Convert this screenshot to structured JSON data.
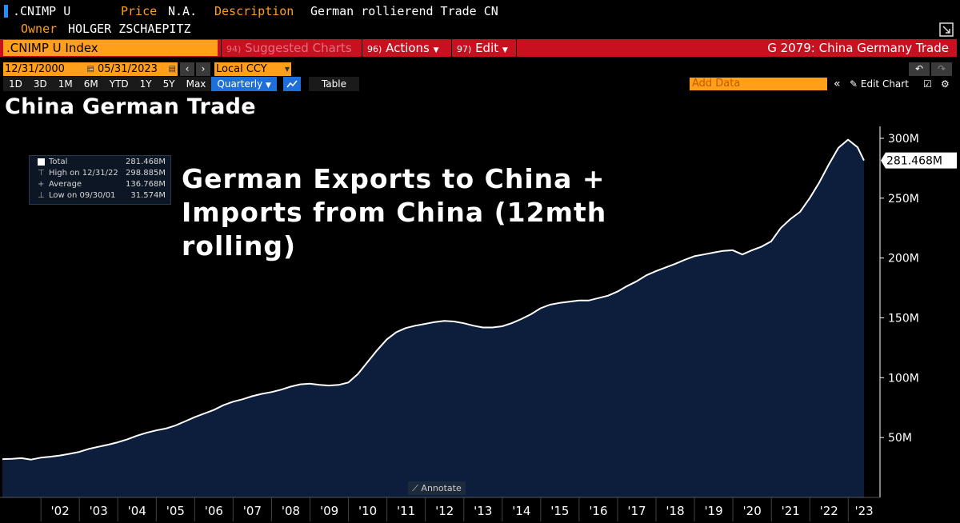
{
  "header": {
    "ticker": ".CNIMP U",
    "price_label": "Price",
    "price_value": "N.A.",
    "description_label": "Description",
    "description_value": "German rollierend Trade CN",
    "owner_label": "Owner",
    "owner_value": "HOLGER ZSCHAEPITZ"
  },
  "command_bar": {
    "security": ".CNIMP U Index",
    "suggested_num": "94)",
    "suggested_label": "Suggested Charts",
    "actions_num": "96)",
    "actions_label": "Actions",
    "edit_num": "97)",
    "edit_label": "Edit",
    "chart_id": "G 2079: China Germany Trade"
  },
  "date_range": {
    "start": "12/31/2000",
    "end": "05/31/2023",
    "currency": "Local CCY"
  },
  "periods": [
    "1D",
    "3D",
    "1M",
    "6M",
    "YTD",
    "1Y",
    "5Y",
    "Max"
  ],
  "frequency": "Quarterly",
  "table_label": "Table",
  "add_data_placeholder": "Add Data",
  "edit_chart_label": "Edit Chart",
  "annotate_label": "Annotate",
  "chart_data": {
    "type": "area",
    "title": "China German Trade",
    "annotation": "German Exports to China + Imports from China (12mth rolling)",
    "legend": {
      "total_label": "Total",
      "total_value": "281.468M",
      "high_label": "High on 12/31/22",
      "high_value": "298.885M",
      "average_label": "Average",
      "average_value": "136.768M",
      "low_label": "Low on 09/30/01",
      "low_value": "31.574M"
    },
    "last_value_label": "281.468M",
    "ylim": [
      0,
      310
    ],
    "y_ticks": [
      50,
      100,
      150,
      200,
      250,
      300
    ],
    "y_tick_labels": [
      "50M",
      "100M",
      "150M",
      "200M",
      "250M",
      "300M"
    ],
    "x_tick_labels": [
      "'02",
      "'03",
      "'04",
      "'05",
      "'06",
      "'07",
      "'08",
      "'09",
      "'10",
      "'11",
      "'12",
      "'13",
      "'14",
      "'15",
      "'16",
      "'17",
      "'18",
      "'19",
      "'20",
      "'21",
      "'22",
      "'23"
    ],
    "x_tick_years": [
      2002,
      2003,
      2004,
      2005,
      2006,
      2007,
      2008,
      2009,
      2010,
      2011,
      2012,
      2013,
      2014,
      2015,
      2016,
      2017,
      2018,
      2019,
      2020,
      2021,
      2022,
      2023
    ],
    "x_range": [
      "2000-12-31",
      "2023-05-31"
    ],
    "series": [
      {
        "unit": "M",
        "color": "#ffffff",
        "fill": "#0c1e3c",
        "points": [
          [
            "2000-12-31",
            32.0
          ],
          [
            "2001-03-31",
            32.3
          ],
          [
            "2001-06-30",
            32.8
          ],
          [
            "2001-09-30",
            31.6
          ],
          [
            "2001-12-31",
            33.2
          ],
          [
            "2002-03-31",
            34.0
          ],
          [
            "2002-06-30",
            35.0
          ],
          [
            "2002-09-30",
            36.4
          ],
          [
            "2002-12-31",
            38.0
          ],
          [
            "2003-03-31",
            40.5
          ],
          [
            "2003-06-30",
            42.3
          ],
          [
            "2003-09-30",
            44.0
          ],
          [
            "2003-12-31",
            46.0
          ],
          [
            "2004-03-31",
            48.5
          ],
          [
            "2004-06-30",
            51.5
          ],
          [
            "2004-09-30",
            54.0
          ],
          [
            "2004-12-31",
            56.0
          ],
          [
            "2005-03-31",
            57.5
          ],
          [
            "2005-06-30",
            60.0
          ],
          [
            "2005-09-30",
            63.5
          ],
          [
            "2005-12-31",
            67.0
          ],
          [
            "2006-03-31",
            70.0
          ],
          [
            "2006-06-30",
            73.0
          ],
          [
            "2006-09-30",
            77.0
          ],
          [
            "2006-12-31",
            80.0
          ],
          [
            "2007-03-31",
            82.0
          ],
          [
            "2007-06-30",
            84.5
          ],
          [
            "2007-09-30",
            86.5
          ],
          [
            "2007-12-31",
            88.0
          ],
          [
            "2008-03-31",
            90.0
          ],
          [
            "2008-06-30",
            92.5
          ],
          [
            "2008-09-30",
            94.5
          ],
          [
            "2008-12-31",
            95.0
          ],
          [
            "2009-03-31",
            94.0
          ],
          [
            "2009-06-30",
            93.5
          ],
          [
            "2009-09-30",
            94.0
          ],
          [
            "2009-12-31",
            96.0
          ],
          [
            "2010-03-31",
            103.0
          ],
          [
            "2010-06-30",
            113.0
          ],
          [
            "2010-09-30",
            123.0
          ],
          [
            "2010-12-31",
            132.0
          ],
          [
            "2011-03-31",
            138.0
          ],
          [
            "2011-06-30",
            141.5
          ],
          [
            "2011-09-30",
            143.5
          ],
          [
            "2011-12-31",
            145.0
          ],
          [
            "2012-03-31",
            146.5
          ],
          [
            "2012-06-30",
            147.5
          ],
          [
            "2012-09-30",
            147.0
          ],
          [
            "2012-12-31",
            145.5
          ],
          [
            "2013-03-31",
            143.5
          ],
          [
            "2013-06-30",
            142.0
          ],
          [
            "2013-09-30",
            142.0
          ],
          [
            "2013-12-31",
            143.0
          ],
          [
            "2014-03-31",
            145.5
          ],
          [
            "2014-06-30",
            149.0
          ],
          [
            "2014-09-30",
            153.0
          ],
          [
            "2014-12-31",
            158.0
          ],
          [
            "2015-03-31",
            161.0
          ],
          [
            "2015-06-30",
            162.5
          ],
          [
            "2015-09-30",
            163.5
          ],
          [
            "2015-12-31",
            164.5
          ],
          [
            "2016-03-31",
            164.5
          ],
          [
            "2016-06-30",
            166.5
          ],
          [
            "2016-09-30",
            168.5
          ],
          [
            "2016-12-31",
            172.0
          ],
          [
            "2017-03-31",
            176.5
          ],
          [
            "2017-06-30",
            180.5
          ],
          [
            "2017-09-30",
            185.5
          ],
          [
            "2017-12-31",
            189.0
          ],
          [
            "2018-03-31",
            192.0
          ],
          [
            "2018-06-30",
            195.0
          ],
          [
            "2018-09-30",
            198.5
          ],
          [
            "2018-12-31",
            201.5
          ],
          [
            "2019-03-31",
            203.0
          ],
          [
            "2019-06-30",
            204.5
          ],
          [
            "2019-09-30",
            206.0
          ],
          [
            "2019-12-31",
            206.5
          ],
          [
            "2020-03-31",
            203.0
          ],
          [
            "2020-06-30",
            206.5
          ],
          [
            "2020-09-30",
            209.5
          ],
          [
            "2020-12-31",
            214.0
          ],
          [
            "2021-03-31",
            225.0
          ],
          [
            "2021-06-30",
            232.5
          ],
          [
            "2021-09-30",
            238.5
          ],
          [
            "2021-12-31",
            250.0
          ],
          [
            "2022-03-31",
            263.0
          ],
          [
            "2022-06-30",
            278.0
          ],
          [
            "2022-09-30",
            292.0
          ],
          [
            "2022-12-31",
            298.9
          ],
          [
            "2023-03-31",
            292.5
          ],
          [
            "2023-05-31",
            281.5
          ]
        ]
      }
    ]
  },
  "colors": {
    "accent_orange": "#ff9f1a",
    "command_red": "#c8101e",
    "area_fill": "#0c1e3c",
    "line": "#ffffff"
  }
}
